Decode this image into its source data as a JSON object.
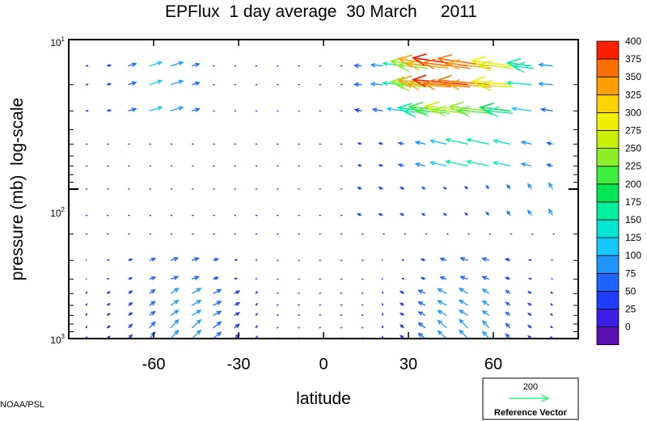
{
  "chart_data": {
    "type": "quiver",
    "title": "EPFlux  1 day average  30 March     2011",
    "xlabel": "latitude",
    "ylabel": "pressure (mb)  log-scale",
    "xlim": [
      -90,
      90
    ],
    "ylim": [
      1000,
      10
    ],
    "yscale": "log",
    "x_ticks": [
      -60,
      -30,
      0,
      30,
      60
    ],
    "x_tick_labels": [
      "-60",
      "-30",
      "0",
      "30",
      "60"
    ],
    "y_ticks": [
      10,
      100,
      1000
    ],
    "y_tick_labels": [
      {
        "base": "10",
        "exp": "1"
      },
      {
        "base": "10",
        "exp": "2"
      },
      {
        "base": "10",
        "exp": "3"
      }
    ],
    "colorbar": {
      "levels": [
        0,
        25,
        50,
        75,
        100,
        125,
        150,
        175,
        200,
        225,
        250,
        275,
        300,
        325,
        350,
        375,
        400
      ],
      "labels": [
        "0",
        "25",
        "50",
        "75",
        "100",
        "125",
        "150",
        "175",
        "200",
        "225",
        "250",
        "275",
        "300",
        "325",
        "350",
        "375",
        "400"
      ],
      "colors": [
        "#5a0fb0",
        "#3c1ee6",
        "#1e3cff",
        "#1e64ff",
        "#1e96ff",
        "#14c8ff",
        "#00e6d2",
        "#00f0a0",
        "#00e650",
        "#3cf03c",
        "#8cf028",
        "#c8f000",
        "#f0f000",
        "#ffd200",
        "#ffa000",
        "#ff6e00",
        "#ff1e00"
      ]
    },
    "reference_vector": {
      "value": 200,
      "label": "Reference Vector",
      "value_label": "200",
      "color": "#3cf07a"
    }
  },
  "credit": "NOAA/PSL"
}
